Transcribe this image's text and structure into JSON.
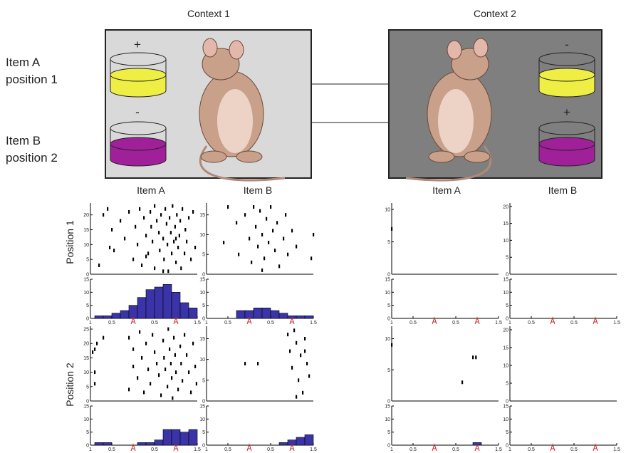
{
  "contexts": [
    {
      "title": "Context 1",
      "cups": [
        {
          "sign": "+"
        },
        {
          "sign": "-"
        }
      ]
    },
    {
      "title": "Context 2",
      "cups": [
        {
          "sign": "-"
        },
        {
          "sign": "+"
        }
      ]
    }
  ],
  "item_labels": [
    [
      "Item A",
      "position 1"
    ],
    [
      "Item B",
      "position 2"
    ]
  ],
  "column_labels": [
    "Item A",
    "Item B",
    "Item A",
    "Item B"
  ],
  "row_labels": [
    "Position 1",
    "Position 2"
  ],
  "time_axis": {
    "xlim": [
      -1,
      1.5
    ],
    "xticks": [
      {
        "value": -1,
        "label": "1"
      },
      {
        "value": -0.5,
        "label": "0.5"
      },
      0.5,
      1.5
    ],
    "event_markers": [
      0,
      1
    ],
    "marker_color": "#cc2222"
  },
  "histogram": {
    "bins": [
      -0.9,
      -0.7,
      -0.5,
      -0.3,
      -0.1,
      0.1,
      0.3,
      0.5,
      0.7,
      0.9,
      1.1,
      1.3,
      1.5
    ],
    "ylim": [
      0,
      15
    ],
    "yticks": [
      0,
      5,
      10,
      15
    ],
    "color": "#3a34a8"
  },
  "panels": [
    {
      "raster": {
        "ylim": [
          0,
          24
        ],
        "yticks": [
          0,
          5,
          10,
          15,
          20
        ],
        "points": [
          [
            -0.7,
            20
          ],
          [
            -0.6,
            22
          ],
          [
            -0.5,
            15
          ],
          [
            -0.45,
            8
          ],
          [
            -0.3,
            18
          ],
          [
            -0.2,
            12
          ],
          [
            -0.1,
            21
          ],
          [
            0,
            5
          ],
          [
            0.05,
            16
          ],
          [
            0.1,
            10
          ],
          [
            0.15,
            22
          ],
          [
            0.2,
            3
          ],
          [
            0.25,
            19
          ],
          [
            0.3,
            13
          ],
          [
            0.35,
            7
          ],
          [
            0.4,
            21
          ],
          [
            0.42,
            16
          ],
          [
            0.45,
            11
          ],
          [
            0.5,
            23
          ],
          [
            0.5,
            2
          ],
          [
            0.55,
            18
          ],
          [
            0.6,
            14
          ],
          [
            0.62,
            8
          ],
          [
            0.65,
            20
          ],
          [
            0.7,
            12
          ],
          [
            0.72,
            5
          ],
          [
            0.75,
            22
          ],
          [
            0.78,
            17
          ],
          [
            0.8,
            10
          ],
          [
            0.82,
            1
          ],
          [
            0.85,
            19
          ],
          [
            0.88,
            14
          ],
          [
            0.9,
            7
          ],
          [
            0.92,
            23
          ],
          [
            0.95,
            11
          ],
          [
            0.98,
            16
          ],
          [
            1,
            4
          ],
          [
            1.02,
            20
          ],
          [
            1.05,
            9
          ],
          [
            1.08,
            13
          ],
          [
            1.1,
            18
          ],
          [
            1.12,
            2
          ],
          [
            1.15,
            22
          ],
          [
            1.2,
            7
          ],
          [
            1.22,
            15
          ],
          [
            1.25,
            11
          ],
          [
            1.3,
            19
          ],
          [
            1.35,
            5
          ],
          [
            1.4,
            21
          ],
          [
            1.45,
            9
          ],
          [
            -0.8,
            3
          ],
          [
            -0.55,
            9
          ],
          [
            0.3,
            6
          ],
          [
            0.7,
            1
          ],
          [
            1,
            12
          ]
        ]
      },
      "counts": [
        1,
        1,
        2,
        3,
        5,
        8,
        11,
        12,
        13,
        10,
        6,
        4
      ]
    },
    {
      "raster": {
        "ylim": [
          0,
          18
        ],
        "yticks": [
          0,
          5,
          10,
          15
        ],
        "points": [
          [
            -0.5,
            17
          ],
          [
            -0.3,
            13
          ],
          [
            -0.25,
            5
          ],
          [
            -0.1,
            15
          ],
          [
            0,
            9
          ],
          [
            0.05,
            3
          ],
          [
            0.1,
            17
          ],
          [
            0.15,
            12
          ],
          [
            0.2,
            7
          ],
          [
            0.25,
            16
          ],
          [
            0.3,
            10
          ],
          [
            0.35,
            4
          ],
          [
            0.4,
            14
          ],
          [
            0.45,
            8
          ],
          [
            0.5,
            17
          ],
          [
            0.55,
            11
          ],
          [
            0.6,
            6
          ],
          [
            0.65,
            13
          ],
          [
            0.7,
            2
          ],
          [
            0.8,
            9
          ],
          [
            0.85,
            15
          ],
          [
            0.9,
            5
          ],
          [
            1,
            11
          ],
          [
            1.1,
            7
          ],
          [
            -0.6,
            8
          ],
          [
            0.3,
            1
          ],
          [
            1.45,
            4
          ],
          [
            1.5,
            10
          ]
        ]
      },
      "counts": [
        0,
        0,
        0,
        3,
        3,
        4,
        4,
        3,
        2,
        1,
        1,
        1
      ]
    },
    {
      "raster": {
        "ylim": [
          0,
          11
        ],
        "yticks": [
          0,
          5,
          10
        ],
        "points": [
          [
            -1,
            7
          ]
        ]
      },
      "counts": [
        0,
        0,
        0,
        0,
        0,
        0,
        0,
        0,
        0,
        0,
        0,
        0
      ]
    },
    {
      "raster": {
        "ylim": [
          0,
          21
        ],
        "yticks": [
          0,
          5,
          10,
          15,
          20
        ],
        "points": []
      },
      "counts": [
        0,
        0,
        0,
        0,
        0,
        0,
        0,
        0,
        0,
        0,
        0,
        0
      ]
    },
    {
      "raster": {
        "ylim": [
          0,
          26
        ],
        "yticks": [
          0,
          5,
          10,
          15,
          20,
          25
        ],
        "points": [
          [
            -0.95,
            17
          ],
          [
            -0.9,
            18
          ],
          [
            -0.85,
            20
          ],
          [
            -0.7,
            22
          ],
          [
            -0.9,
            10
          ],
          [
            -0.9,
            6
          ],
          [
            -0.1,
            22
          ],
          [
            -0.1,
            4
          ],
          [
            0,
            18
          ],
          [
            0,
            12
          ],
          [
            0.1,
            8
          ],
          [
            0.15,
            24
          ],
          [
            0.2,
            15
          ],
          [
            0.25,
            3
          ],
          [
            0.3,
            20
          ],
          [
            0.35,
            11
          ],
          [
            0.4,
            6
          ],
          [
            0.45,
            23
          ],
          [
            0.5,
            17
          ],
          [
            0.55,
            13
          ],
          [
            0.6,
            9
          ],
          [
            0.65,
            2
          ],
          [
            0.7,
            21
          ],
          [
            0.72,
            15
          ],
          [
            0.75,
            11
          ],
          [
            0.8,
            5
          ],
          [
            0.82,
            25
          ],
          [
            0.85,
            18
          ],
          [
            0.88,
            13
          ],
          [
            0.9,
            8
          ],
          [
            0.92,
            1
          ],
          [
            0.95,
            22
          ],
          [
            0.98,
            16
          ],
          [
            1,
            10
          ],
          [
            1.05,
            4
          ],
          [
            1.1,
            19
          ],
          [
            1.12,
            13
          ],
          [
            1.15,
            7
          ],
          [
            1.2,
            23
          ],
          [
            1.25,
            16
          ],
          [
            1.3,
            10
          ],
          [
            1.35,
            3
          ],
          [
            1.4,
            20
          ],
          [
            1.45,
            12
          ],
          [
            1.48,
            6
          ]
        ]
      },
      "counts": [
        1,
        1,
        0,
        0,
        0,
        1,
        1,
        2,
        6,
        6,
        5,
        6
      ]
    },
    {
      "raster": {
        "ylim": [
          0,
          18
        ],
        "yticks": [
          0,
          5,
          10,
          15
        ],
        "points": [
          [
            -0.1,
            9
          ],
          [
            0.2,
            9
          ],
          [
            0.9,
            16
          ],
          [
            0.95,
            12
          ],
          [
            1,
            8
          ],
          [
            1.05,
            17
          ],
          [
            1.1,
            14
          ],
          [
            1.15,
            5
          ],
          [
            1.2,
            11
          ],
          [
            1.25,
            2
          ],
          [
            1.3,
            15
          ],
          [
            1.35,
            9
          ],
          [
            1.4,
            6
          ],
          [
            1.1,
            1
          ],
          [
            1.3,
            12
          ]
        ]
      },
      "counts": [
        0,
        0,
        0,
        0,
        0,
        0,
        0,
        0,
        1,
        2,
        3,
        4
      ]
    },
    {
      "raster": {
        "ylim": [
          0,
          12
        ],
        "yticks": [
          0,
          5,
          10
        ],
        "points": [
          [
            -1,
            9
          ],
          [
            0.65,
            3
          ],
          [
            0.9,
            7
          ],
          [
            0.97,
            7
          ]
        ]
      },
      "counts": [
        0,
        0,
        0,
        0,
        0,
        0,
        0,
        0,
        0,
        1,
        0,
        0
      ]
    },
    {
      "raster": {
        "ylim": [
          0,
          21
        ],
        "yticks": [
          0,
          5,
          10,
          15,
          20
        ],
        "points": []
      },
      "counts": [
        0,
        0,
        0,
        0,
        0,
        0,
        0,
        0,
        0,
        0,
        0,
        0
      ]
    }
  ]
}
